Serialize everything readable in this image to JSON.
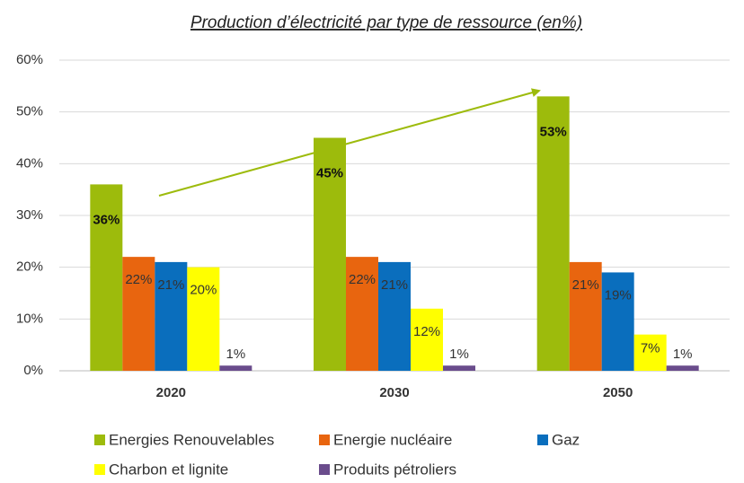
{
  "chart_data": {
    "type": "bar",
    "title": "Production d’électricité par type de ressource (en%)",
    "categories": [
      "2020",
      "2030",
      "2050"
    ],
    "series": [
      {
        "name": "Energies Renouvelables",
        "color": "#9dbb0c",
        "values": [
          36,
          45,
          53
        ],
        "value_labels": [
          "36%",
          "45%",
          "53%"
        ]
      },
      {
        "name": "Energie nucléaire",
        "color": "#e8650f",
        "values": [
          22,
          22,
          21
        ],
        "value_labels": [
          "22%",
          "22%",
          "21%"
        ]
      },
      {
        "name": "Gaz",
        "color": "#0a6ebd",
        "values": [
          21,
          21,
          19
        ],
        "value_labels": [
          "21%",
          "21%",
          "19%"
        ]
      },
      {
        "name": "Charbon et lignite",
        "color": "#ffff00",
        "values": [
          20,
          12,
          7
        ],
        "value_labels": [
          "20%",
          "12%",
          "7%"
        ]
      },
      {
        "name": "Produits pétroliers",
        "color": "#6a4c8c",
        "values": [
          1,
          1,
          1
        ],
        "value_labels": [
          "1%",
          "1%",
          "1%"
        ]
      }
    ],
    "ylim": [
      0,
      60
    ],
    "yticks": [
      {
        "value": 0,
        "label": "0%"
      },
      {
        "value": 10,
        "label": "10%"
      },
      {
        "value": 20,
        "label": "20%"
      },
      {
        "value": 30,
        "label": "30%"
      },
      {
        "value": 40,
        "label": "40%"
      },
      {
        "value": 50,
        "label": "50%"
      },
      {
        "value": 60,
        "label": "60%"
      }
    ],
    "grid": true,
    "legend": "bottom"
  }
}
